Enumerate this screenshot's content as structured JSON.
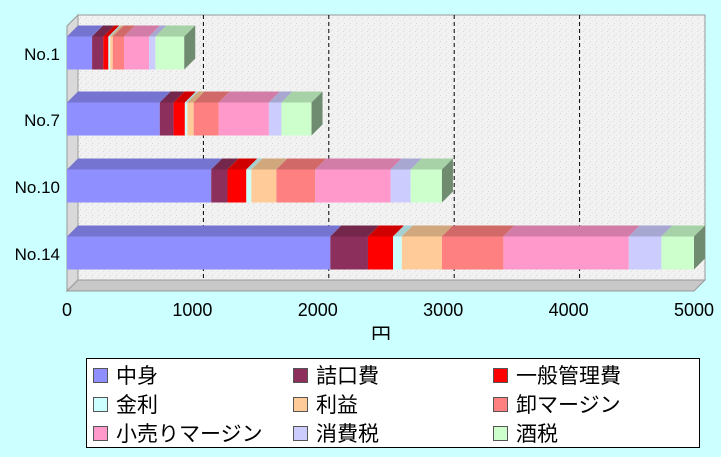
{
  "chart_data": {
    "type": "bar",
    "orientation": "horizontal",
    "stacked": true,
    "three_d": true,
    "categories": [
      "No.14",
      "No.10",
      "No.7",
      "No.1"
    ],
    "xlabel": "円",
    "xlim": [
      0,
      5000
    ],
    "xticks": [
      0,
      1000,
      2000,
      3000,
      4000,
      5000
    ],
    "grid": "vertical dashed",
    "legend_position": "bottom",
    "series": [
      {
        "name": "中身",
        "color": "#8f8fff",
        "values": [
          2100,
          1150,
          740,
          200
        ]
      },
      {
        "name": "詰口費",
        "color": "#8c2f5c",
        "values": [
          300,
          130,
          110,
          90
        ]
      },
      {
        "name": "一般管理費",
        "color": "#ff0000",
        "values": [
          200,
          150,
          90,
          40
        ]
      },
      {
        "name": "金利",
        "color": "#ccffff",
        "values": [
          70,
          40,
          20,
          15
        ]
      },
      {
        "name": "利益",
        "color": "#ffcc99",
        "values": [
          320,
          200,
          50,
          20
        ]
      },
      {
        "name": "卸マージン",
        "color": "#ff8080",
        "values": [
          490,
          310,
          200,
          90
        ]
      },
      {
        "name": "小売りマージン",
        "color": "#ff99cc",
        "values": [
          1000,
          600,
          400,
          200
        ]
      },
      {
        "name": "消費税",
        "color": "#ccccff",
        "values": [
          260,
          160,
          100,
          50
        ]
      },
      {
        "name": "酒税",
        "color": "#ccffcc",
        "values": [
          260,
          250,
          240,
          230
        ]
      }
    ]
  }
}
